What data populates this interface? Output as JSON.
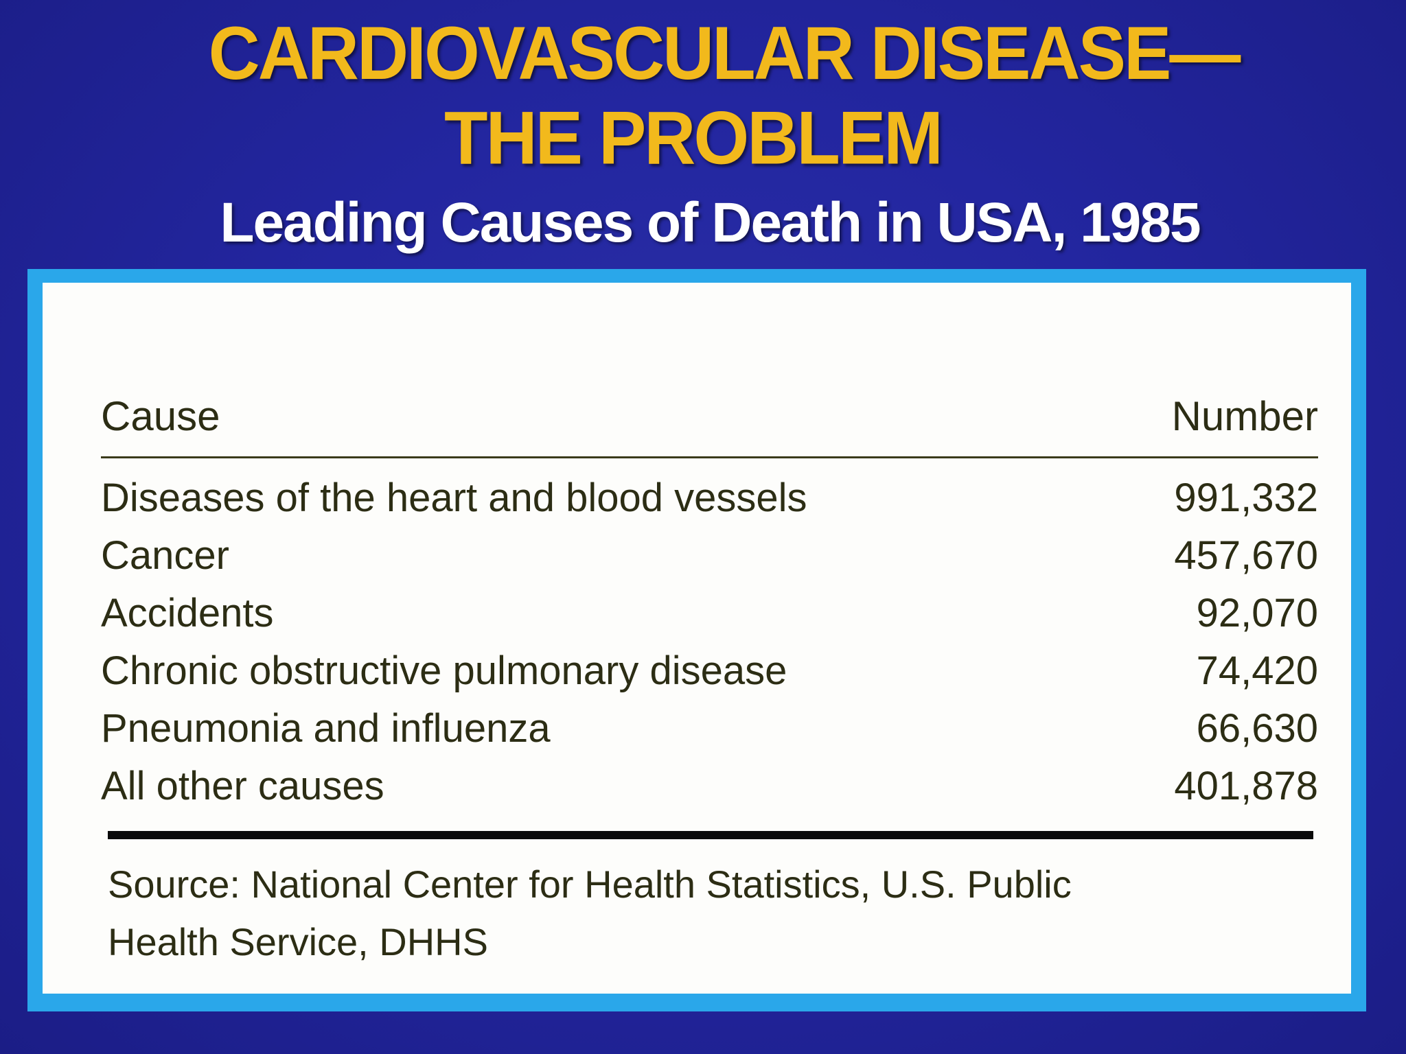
{
  "title": {
    "line1": "CARDIOVASCULAR DISEASE—",
    "line2": "THE PROBLEM"
  },
  "subtitle": "Leading Causes of Death in USA, 1985",
  "table": {
    "headers": {
      "cause": "Cause",
      "number": "Number"
    },
    "rows": [
      {
        "cause": "Diseases of the heart and blood vessels",
        "number": "991,332"
      },
      {
        "cause": "Cancer",
        "number": "457,670"
      },
      {
        "cause": "Accidents",
        "number": "92,070"
      },
      {
        "cause": "Chronic obstructive pulmonary disease",
        "number": "74,420"
      },
      {
        "cause": "Pneumonia and influenza",
        "number": "66,630"
      },
      {
        "cause": "All other causes",
        "number": "401,878"
      }
    ]
  },
  "source": "Source: National Center for Health Statistics, U.S. Public Health Service, DHHS",
  "colors": {
    "background": "#2326a0",
    "title": "#f2b91c",
    "subtitle": "#ffffff",
    "frame": "#2aa7ea",
    "panel": "#fdfdfb",
    "text": "#2c2d14"
  }
}
